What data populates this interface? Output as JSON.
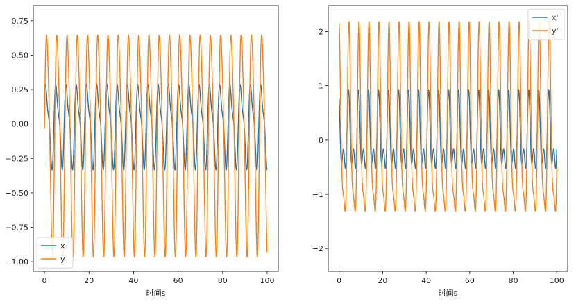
{
  "chart_data": [
    {
      "type": "line",
      "xlabel": "时间s",
      "ylabel": "",
      "xlim": [
        -5,
        105
      ],
      "ylim": [
        -1.07,
        0.86
      ],
      "xticks": [
        0,
        20,
        40,
        60,
        80,
        100
      ],
      "xtick_labels": [
        "0",
        "20",
        "40",
        "60",
        "80",
        "100"
      ],
      "yticks": [
        -1.0,
        -0.75,
        -0.5,
        -0.25,
        0.0,
        0.25,
        0.5,
        0.75
      ],
      "ytick_labels": [
        "−1.00",
        "−0.75",
        "−0.50",
        "−0.25",
        "0.00",
        "0.25",
        "0.50",
        "0.75"
      ],
      "legend_position": "lower-left",
      "series": [
        {
          "name": "x",
          "color": "#1f77b4",
          "generator": {
            "t_start": 0,
            "t_end": 100,
            "samples": 1600,
            "offset": 0.0,
            "components": [
              {
                "amp": 0.27,
                "period": 4.6,
                "phase": 0.4
              },
              {
                "amp": 0.09,
                "period": 2.3,
                "phase": 1.2
              }
            ]
          }
        },
        {
          "name": "y",
          "color": "#ff7f0e",
          "generator": {
            "t_start": 0,
            "t_end": 100,
            "samples": 1600,
            "offset": -0.1,
            "components": [
              {
                "amp": 0.78,
                "period": 4.6,
                "phase": 0.0
              },
              {
                "amp": 0.12,
                "period": 2.3,
                "phase": 0.6
              }
            ]
          }
        }
      ]
    },
    {
      "type": "line",
      "xlabel": "时间s",
      "ylabel": "",
      "xlim": [
        -5,
        105
      ],
      "ylim": [
        -2.42,
        2.48
      ],
      "xticks": [
        0,
        20,
        40,
        60,
        80,
        100
      ],
      "xtick_labels": [
        "0",
        "20",
        "40",
        "60",
        "80",
        "100"
      ],
      "yticks": [
        -2,
        -1,
        0,
        1,
        2
      ],
      "ytick_labels": [
        "−2",
        "−1",
        "0",
        "1",
        "2"
      ],
      "legend_position": "upper-right",
      "series": [
        {
          "name": "x'",
          "color": "#1f77b4",
          "generator": {
            "t_start": 0,
            "t_end": 100,
            "samples": 1600,
            "offset": 0.0,
            "components": [
              {
                "amp": 0.55,
                "period": 4.6,
                "phase": 1.9
              },
              {
                "amp": 0.38,
                "period": 2.3,
                "phase": 2.4
              }
            ]
          }
        },
        {
          "name": "y'",
          "color": "#ff7f0e",
          "generator": {
            "t_start": 0,
            "t_end": 100,
            "samples": 1600,
            "offset": 0.05,
            "components": [
              {
                "amp": 1.65,
                "period": 4.6,
                "phase": 1.6
              },
              {
                "amp": 0.5,
                "period": 2.3,
                "phase": 2.0
              }
            ]
          }
        }
      ]
    }
  ]
}
